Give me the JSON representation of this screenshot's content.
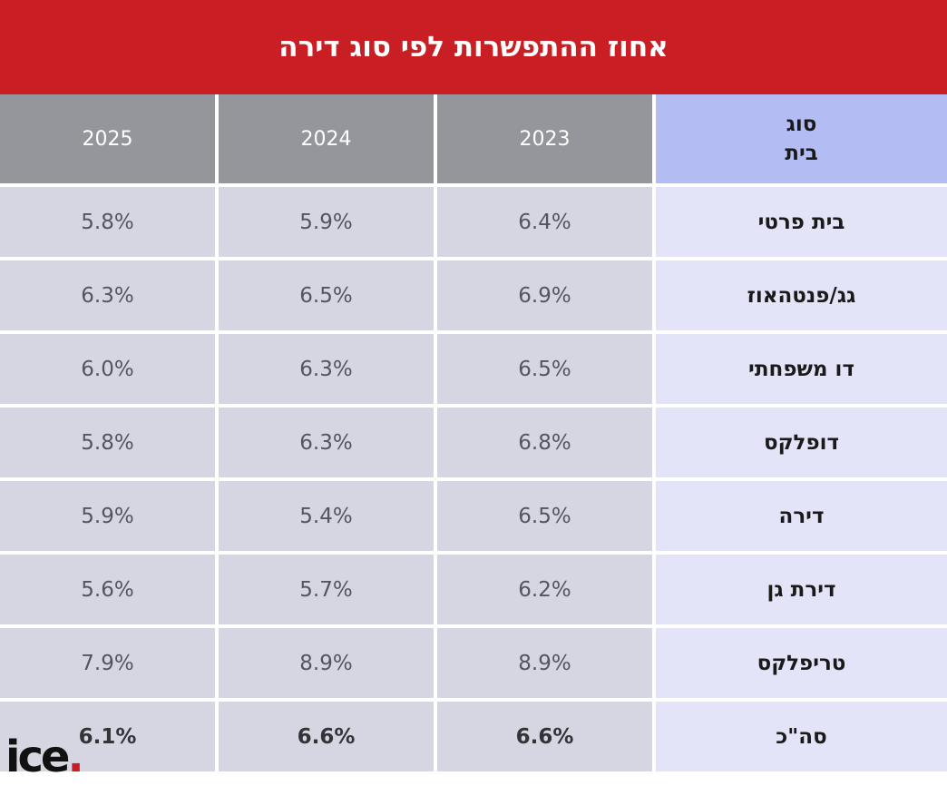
{
  "title": "אחוז ההתפשרות לפי סוג דירה",
  "header": {
    "type_label_line1": "סוג",
    "type_label_line2": "בית",
    "years": [
      "2025",
      "2024",
      "2023"
    ]
  },
  "chart_data": {
    "type": "table",
    "title": "אחוז ההתפשרות לפי סוג דירה",
    "columns": [
      "סוג בית",
      "2023",
      "2024",
      "2025"
    ],
    "rows": [
      {
        "label": "בית פרטי",
        "y2023": "6.4%",
        "y2024": "5.9%",
        "y2025": "5.8%"
      },
      {
        "label": "גג/פנטהאוז",
        "y2023": "6.9%",
        "y2024": "6.5%",
        "y2025": "6.3%"
      },
      {
        "label": "דו משפחתי",
        "y2023": "6.5%",
        "y2024": "6.3%",
        "y2025": "6.0%"
      },
      {
        "label": "דופלקס",
        "y2023": "6.8%",
        "y2024": "6.3%",
        "y2025": "5.8%"
      },
      {
        "label": "דירה",
        "y2023": "6.5%",
        "y2024": "5.4%",
        "y2025": "5.9%"
      },
      {
        "label": "דירת גן",
        "y2023": "6.2%",
        "y2024": "5.7%",
        "y2025": "5.6%"
      },
      {
        "label": "טריפלקס",
        "y2023": "8.9%",
        "y2024": "8.9%",
        "y2025": "7.9%"
      },
      {
        "label": "סה\"כ",
        "y2023": "6.6%",
        "y2024": "6.6%",
        "y2025": "6.1%"
      }
    ]
  },
  "logo": {
    "text": "ice",
    "dot": "."
  },
  "colors": {
    "title_bg": "#c81e24",
    "year_header": "#95969b",
    "type_header": "#b3bdf4",
    "value_cell": "#d6d6e2",
    "label_cell": "#e3e4f8"
  }
}
